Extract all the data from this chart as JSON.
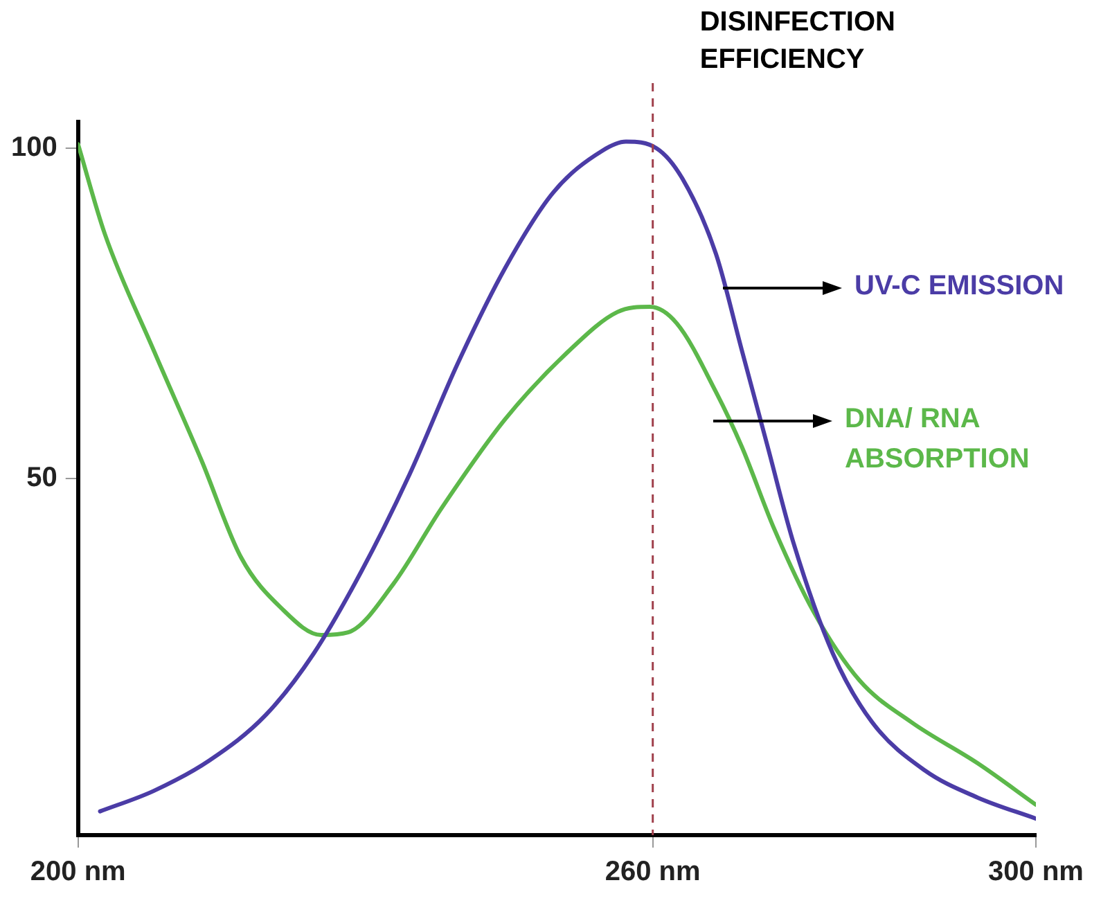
{
  "chart_data": {
    "type": "line",
    "xlim": [
      200,
      300
    ],
    "ylim": [
      -4,
      104
    ],
    "xticks": [
      {
        "value": 200,
        "label": "200 nm"
      },
      {
        "value": 260,
        "label": "260 nm"
      },
      {
        "value": 300,
        "label": "300 nm"
      }
    ],
    "yticks": [
      50,
      100
    ],
    "grid": false,
    "legend": false,
    "marker": "none",
    "line_style": "solid",
    "series": [
      {
        "name": "UV-C EMISSION",
        "color": "#4b3ca6",
        "x": [
          202.3,
          207.9,
          213.7,
          219.6,
          224.6,
          229.6,
          234.6,
          239.6,
          244.6,
          249.6,
          254.7,
          257.2,
          260.4,
          263.1,
          266.6,
          269.3,
          272,
          274.7,
          278.8,
          282.9,
          288.4,
          293.9,
          300
        ],
        "values": [
          -0.4,
          2.7,
          7.3,
          14.2,
          23.5,
          36,
          50.6,
          67.3,
          81.9,
          93.3,
          99.6,
          101,
          100,
          95.4,
          84,
          69.4,
          54.8,
          40.2,
          23.5,
          13.1,
          5.8,
          1.7,
          -1.5
        ]
      },
      {
        "name": "DNA/ RNA ABSORPTION",
        "color": "#5cb84a",
        "x": [
          200,
          202.8,
          207.9,
          212.9,
          217,
          221.2,
          225.4,
          228.2,
          232.9,
          237.9,
          244.6,
          251.3,
          256.3,
          259.7,
          262.5,
          266.6,
          269.3,
          272.7,
          276.8,
          281.6,
          287,
          293.9,
          300
        ],
        "values": [
          100.6,
          87,
          69.4,
          52.7,
          38.1,
          30.4,
          26.3,
          26.7,
          34,
          45.4,
          59,
          69.4,
          75.2,
          76,
          73.5,
          63.1,
          54.8,
          42.3,
          29.8,
          19.4,
          13.1,
          6.9,
          0.6
        ]
      }
    ],
    "ref_lines": [
      {
        "axis": "x",
        "value": 260,
        "label": "DISINFECTION EFFICIENCY",
        "color": "#a0404c",
        "line_style": "dashed"
      }
    ]
  }
}
